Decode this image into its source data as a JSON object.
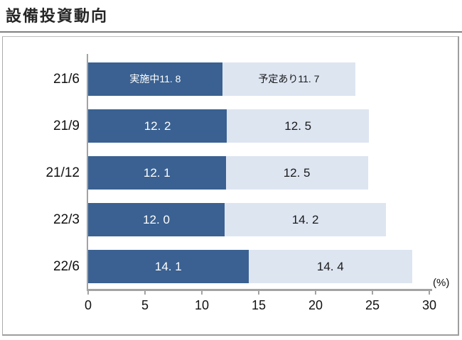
{
  "header": {
    "title": "設備投資動向"
  },
  "chart_data": {
    "type": "bar",
    "orientation": "horizontal",
    "stacked": true,
    "title": "設備投資動向",
    "categories": [
      "21/6",
      "21/9",
      "21/12",
      "22/3",
      "22/6"
    ],
    "series": [
      {
        "name": "実施中",
        "color": "#3a6191",
        "label_color": "#ffffff",
        "values": [
          11.8,
          12.2,
          12.1,
          12.0,
          14.1
        ]
      },
      {
        "name": "予定あり",
        "color": "#dde5f1",
        "label_color": "#1a1a1a",
        "values": [
          11.7,
          12.5,
          12.5,
          14.2,
          14.4
        ]
      }
    ],
    "bar_labels": [
      [
        "実施中11. 8",
        "予定あり11. 7"
      ],
      [
        "12. 2",
        "12. 5"
      ],
      [
        "12. 1",
        "12. 5"
      ],
      [
        "12. 0",
        "14. 2"
      ],
      [
        "14. 1",
        "14. 4"
      ]
    ],
    "xlim": [
      0,
      30
    ],
    "x_ticks": [
      0,
      5,
      10,
      15,
      20,
      25,
      30
    ],
    "x_unit_label": "(%)",
    "grid": false,
    "legend_position": "inline-first-bar"
  },
  "colors": {
    "axis": "#a3a3a3",
    "panel_border": "#9e9e9e",
    "title_underline": "#808080",
    "text": "#111111"
  }
}
